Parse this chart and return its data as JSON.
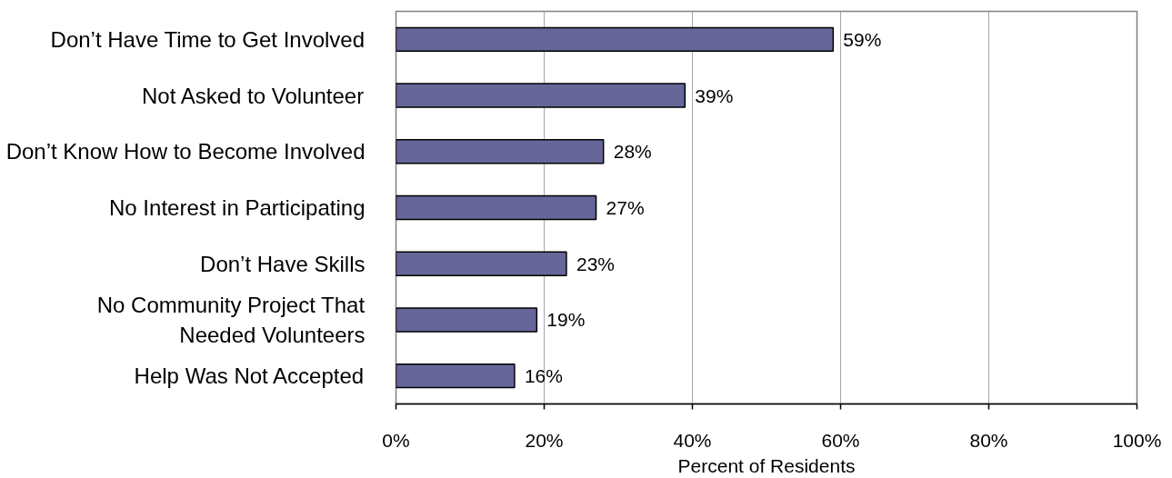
{
  "chart_data": {
    "type": "bar",
    "orientation": "horizontal",
    "categories": [
      "Don’t Have Time to Get Involved",
      "Not Asked to Volunteer",
      "Don’t Know How to Become Involved",
      "No Interest in Participating",
      "Don’t Have Skills",
      "No Community Project That\nNeeded Volunteers",
      "Help Was Not Accepted"
    ],
    "values": [
      59,
      39,
      28,
      27,
      23,
      19,
      16
    ],
    "color": "#666699",
    "value_labels": [
      "59%",
      "39%",
      "28%",
      "27%",
      "23%",
      "19%",
      "16%"
    ],
    "xlabel": "Percent of Residents",
    "xlim": [
      0,
      100
    ],
    "xticks": [
      {
        "value": 0,
        "label": "0%"
      },
      {
        "value": 20,
        "label": "20%"
      },
      {
        "value": 40,
        "label": "40%"
      },
      {
        "value": 60,
        "label": "60%"
      },
      {
        "value": 80,
        "label": "80%"
      },
      {
        "value": 100,
        "label": "100%"
      }
    ],
    "grid": "x"
  }
}
